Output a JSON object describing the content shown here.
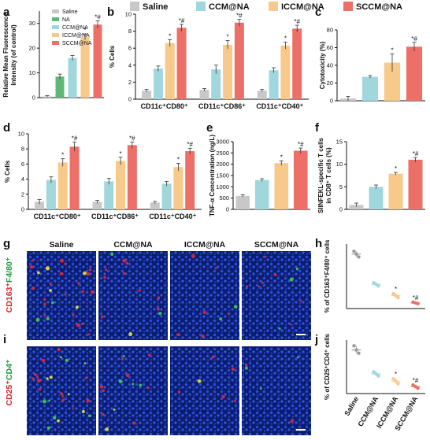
{
  "legend": {
    "items": [
      {
        "label": "Saline",
        "color": "#c8c8c8"
      },
      {
        "label": "CCM@NA",
        "color": "#9fd7dd"
      },
      {
        "label": "ICCM@NA",
        "color": "#f7c98a"
      },
      {
        "label": "SCCM@NA",
        "color": "#ec6f68"
      }
    ]
  },
  "panel_labels": [
    "a",
    "b",
    "c",
    "d",
    "e",
    "f",
    "g",
    "h",
    "i",
    "j"
  ],
  "colors": {
    "saline": "#c8c8c8",
    "na": "#5fb878",
    "ccm": "#9fd7dd",
    "iccm": "#f7c98a",
    "sccm": "#ec6f68"
  },
  "chart_data": [
    {
      "panel": "a",
      "type": "bar",
      "legend": [
        "Saline",
        "NA",
        "CCM@NA",
        "ICCM@NA",
        "SCCM@NA"
      ],
      "values": [
        0.5,
        8.5,
        16,
        24.5,
        29.5
      ],
      "errors": [
        0.3,
        1,
        1,
        1.2,
        1.5
      ],
      "sig": [
        "",
        "",
        "",
        "*",
        "*#"
      ],
      "ylabel_lines": [
        "Relative Mean Fluorescence",
        "Intensity (of control)"
      ],
      "ylim": [
        0,
        35
      ],
      "yticks": [
        0,
        10,
        20,
        30
      ]
    },
    {
      "panel": "b",
      "type": "bar",
      "categories": [
        "CD11c⁺CD80⁺",
        "CD11c⁺CD86⁺",
        "CD11c⁺CD40⁺"
      ],
      "series": [
        {
          "values": [
            1.0,
            1.1,
            1.0
          ],
          "errors": [
            0.15,
            0.15,
            0.15
          ]
        },
        {
          "values": [
            3.6,
            3.5,
            3.4
          ],
          "errors": [
            0.3,
            0.5,
            0.3
          ]
        },
        {
          "values": [
            6.6,
            6.4,
            6.3
          ],
          "errors": [
            0.4,
            0.5,
            0.4
          ]
        },
        {
          "values": [
            8.4,
            9.0,
            8.3
          ],
          "errors": [
            0.4,
            0.4,
            0.4
          ]
        }
      ],
      "sig": [
        "",
        "",
        "*",
        "*#"
      ],
      "ylabel": "% Cells",
      "ylim": [
        0,
        10
      ],
      "yticks": [
        0,
        2,
        4,
        6,
        8,
        10
      ]
    },
    {
      "panel": "c",
      "type": "bar",
      "values": [
        2.5,
        27,
        43,
        61
      ],
      "errors": [
        2.5,
        1.5,
        10,
        5
      ],
      "sig": [
        "",
        "",
        "*",
        "*#"
      ],
      "ylabel": "Cytotoxicity (%)",
      "ylim": [
        0,
        80
      ],
      "yticks": [
        0,
        20,
        40,
        60,
        80
      ]
    },
    {
      "panel": "d",
      "type": "bar",
      "categories": [
        "CD11c⁺CD80⁺",
        "CD11c⁺CD86⁺",
        "CD11c⁺CD40⁺"
      ],
      "series": [
        {
          "values": [
            1.0,
            1.0,
            0.9
          ],
          "errors": [
            0.3,
            0.2,
            0.15
          ]
        },
        {
          "values": [
            3.9,
            3.7,
            3.4
          ],
          "errors": [
            0.4,
            0.4,
            0.3
          ]
        },
        {
          "values": [
            6.2,
            6.4,
            5.6
          ],
          "errors": [
            0.5,
            0.5,
            0.5
          ]
        },
        {
          "values": [
            8.3,
            8.5,
            7.7
          ],
          "errors": [
            0.6,
            0.4,
            0.4
          ]
        }
      ],
      "sig": [
        "",
        "",
        "*",
        "*#"
      ],
      "ylabel": "% Cells",
      "ylim": [
        0,
        10
      ],
      "yticks": [
        0,
        2,
        4,
        6,
        8,
        10
      ]
    },
    {
      "panel": "e",
      "type": "bar",
      "values": [
        600,
        1300,
        2050,
        2600
      ],
      "errors": [
        50,
        60,
        100,
        120
      ],
      "sig": [
        "",
        "",
        "*",
        "*#"
      ],
      "ylabel": "TNF-α Concentration (ng/L)",
      "ylim": [
        0,
        3000
      ],
      "yticks": [
        0,
        500,
        1000,
        1500,
        2000,
        2500,
        3000
      ]
    },
    {
      "panel": "f",
      "type": "bar",
      "values": [
        1.0,
        5.0,
        7.9,
        11.0
      ],
      "errors": [
        0.4,
        0.4,
        0.3,
        0.5
      ],
      "sig": [
        "",
        "",
        "*",
        "*#"
      ],
      "ylabel_lines": [
        "SIINFEKL-specific T cells",
        "in CD8⁺ T cells (%)"
      ],
      "ylim": [
        0,
        15
      ],
      "yticks": [
        0,
        5,
        10,
        15
      ]
    },
    {
      "panel": "h",
      "type": "scatter",
      "points": [
        [
          13.5,
          14.2,
          12.8
        ],
        [
          6.0,
          6.4,
          5.6
        ],
        [
          3.2,
          3.7,
          2.7
        ],
        [
          1.4,
          1.6,
          1.2
        ]
      ],
      "sig": [
        "",
        "",
        "*",
        "*#"
      ],
      "ylabel": "% of CD163⁺F4/80⁺ cells"
    },
    {
      "panel": "j",
      "type": "scatter",
      "points": [
        [
          10.6,
          11.6,
          9.8
        ],
        [
          4.8,
          5.3,
          4.3
        ],
        [
          3.0,
          3.6,
          2.4
        ],
        [
          1.7,
          2.1,
          1.3
        ]
      ],
      "sig": [
        "",
        "",
        "*",
        "*#"
      ],
      "ylabel": "% of CD25⁺CD4⁺ cells",
      "xticklabels": [
        "Saline",
        "CCM@NA",
        "ICCM@NA",
        "SCCM@NA"
      ]
    }
  ],
  "images": {
    "column_titles": [
      "Saline",
      "CCM@NA",
      "ICCM@NA",
      "SCCM@NA"
    ],
    "row_g_label_a": "CD163⁺",
    "row_g_label_b": "F4/80⁺",
    "row_i_label_a": "CD25⁺",
    "row_i_label_b": "CD4⁺"
  }
}
